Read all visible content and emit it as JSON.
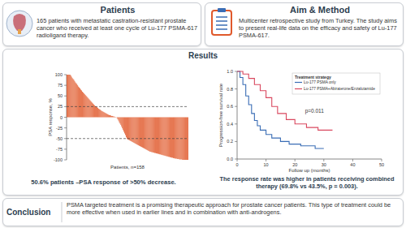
{
  "patients": {
    "title": "Patients",
    "text": "165 patients with metastatic castration-resistant prostate cancer who received at least one cycle of Lu-177 PSMA-617 radioligand therapy."
  },
  "aim_method": {
    "title": "Aim & Method",
    "text": "Multicenter retrospective study from Turkey. The study aims to present real-life data on the efficacy and safety of Lu-177 PSMA-617."
  },
  "results": {
    "title": "Results"
  },
  "chart_data": [
    {
      "type": "bar",
      "ylabel": "PSA response, %",
      "xlabel": "Patients, n=158",
      "color": "#e0592b",
      "values": [
        100,
        100,
        100,
        100,
        100,
        98,
        95,
        92,
        90,
        88,
        85,
        82,
        80,
        78,
        75,
        72,
        70,
        68,
        65,
        63,
        60,
        58,
        56,
        54,
        52,
        50,
        48,
        46,
        44,
        42,
        40,
        38,
        36,
        34,
        32,
        30,
        28,
        26,
        25,
        24,
        22,
        20,
        19,
        18,
        16,
        15,
        14,
        13,
        12,
        11,
        10,
        9,
        8,
        7,
        6,
        5,
        5,
        4,
        3,
        3,
        2,
        2,
        1,
        1,
        0,
        -2,
        -5,
        -8,
        -12,
        -15,
        -18,
        -22,
        -26,
        -30,
        -34,
        -38,
        -42,
        -47,
        -51,
        -52,
        -53,
        -54,
        -55,
        -56,
        -57,
        -58,
        -59,
        -60,
        -61,
        -62,
        -63,
        -64,
        -65,
        -66,
        -67,
        -68,
        -69,
        -70,
        -71,
        -72,
        -73,
        -74,
        -75,
        -76,
        -77,
        -78,
        -79,
        -80,
        -81,
        -81,
        -82,
        -82,
        -83,
        -83,
        -84,
        -84,
        -85,
        -85,
        -86,
        -86,
        -87,
        -87,
        -88,
        -88,
        -89,
        -89,
        -90,
        -90,
        -91,
        -91,
        -92,
        -92,
        -93,
        -93,
        -94,
        -94,
        -95,
        -95,
        -96,
        -96,
        -97,
        -97,
        -97,
        -98,
        -98,
        -98,
        -99,
        -99,
        -99,
        -99,
        -100,
        -100,
        -100,
        -100,
        -100,
        -100,
        -100,
        -100
      ],
      "ylim": [
        -100,
        100
      ],
      "yticks": [
        -100,
        -75,
        -50,
        -25,
        0,
        25,
        50,
        75,
        100
      ],
      "reference_lines": [
        25,
        -50
      ],
      "tick_labels": "y",
      "caption": "50.6% patients –PSA response of >50% decrease."
    },
    {
      "type": "line",
      "ylabel": "Progression-free survival rate",
      "xlabel": "Follow up (months)",
      "annotations": [
        "p=0.011"
      ],
      "legend_title": "Treatment strategy",
      "legend": "upper right",
      "line_style": "step",
      "series": [
        {
          "name": "Lu-177 PSMA only",
          "color": "#3a6db5",
          "x": [
            0,
            1,
            2,
            3,
            4,
            5,
            6,
            7,
            8,
            10,
            12,
            15,
            18,
            22,
            27,
            30
          ],
          "values": [
            1,
            0.93,
            0.85,
            0.72,
            0.62,
            0.52,
            0.44,
            0.38,
            0.33,
            0.28,
            0.24,
            0.2,
            0.17,
            0.15,
            0.12,
            0.12
          ]
        },
        {
          "name": "Lu-177 PSMA+Abiraterone/Enzalutamide",
          "color": "#d9485f",
          "x": [
            0,
            2,
            4,
            6,
            8,
            10,
            12,
            14,
            17,
            20,
            24,
            28,
            33
          ],
          "values": [
            1,
            0.97,
            0.92,
            0.85,
            0.78,
            0.7,
            0.6,
            0.52,
            0.45,
            0.4,
            0.36,
            0.33,
            0.33
          ]
        }
      ],
      "xlim": [
        0,
        50
      ],
      "xticks": [
        0,
        10,
        20,
        30,
        40,
        50
      ],
      "ylim": [
        0,
        1
      ],
      "yticks": [
        {
          "value": 0,
          "label": "0.0"
        },
        {
          "value": 0.2,
          "label": "0.2"
        },
        {
          "value": 0.4,
          "label": "0.4"
        },
        {
          "value": 0.6,
          "label": "0.6"
        },
        {
          "value": 0.8,
          "label": "0.8"
        },
        {
          "value": 1,
          "label": "1.0"
        }
      ],
      "caption": "The response rate was higher in patients receiving combined therapy (69.8% vs 43.5%, p = 0.003)."
    }
  ],
  "conclusion": {
    "title": "Conclusion",
    "text": "PSMA targeted treatment is a promising therapeutic approach for prostate cancer patients. This type of treatment could be more effective when used in earlier lines and in combination with anti-androgens."
  }
}
